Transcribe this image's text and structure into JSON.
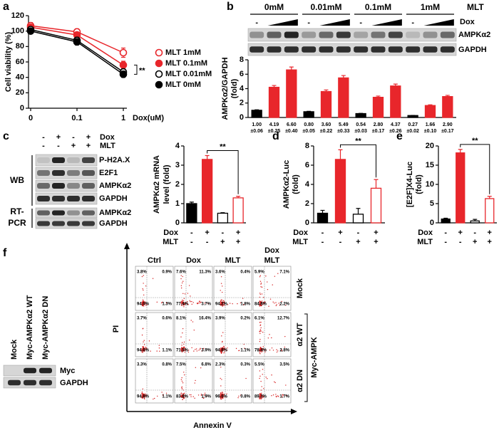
{
  "panel_labels": [
    "a",
    "b",
    "c",
    "d",
    "e",
    "f"
  ],
  "chart_data": [
    {
      "type": "line",
      "ylabel": [
        "Cell viability (%)"
      ],
      "xlabel": "Dox(uM)",
      "categories": [
        "0",
        "0.1",
        "1"
      ],
      "ylim": [
        0,
        120
      ],
      "yticks": [
        0,
        20,
        40,
        60,
        80,
        100,
        120
      ],
      "annotation": "**",
      "series": [
        {
          "name": "MLT 1mM",
          "color": "#e8262b",
          "filled": false,
          "values": [
            107,
            99,
            72
          ],
          "errors": [
            4,
            4,
            6
          ]
        },
        {
          "name": "MLT 0.1mM",
          "color": "#e8262b",
          "filled": true,
          "values": [
            105,
            95,
            56
          ],
          "errors": [
            3,
            3,
            5
          ]
        },
        {
          "name": "MLT 0.01mM",
          "color": "#000000",
          "filled": false,
          "values": [
            102,
            88,
            47
          ],
          "errors": [
            3,
            4,
            4
          ]
        },
        {
          "name": "MLT 0mM",
          "color": "#000000",
          "filled": true,
          "values": [
            100,
            86,
            44
          ],
          "errors": [
            3,
            4,
            4
          ]
        }
      ]
    },
    {
      "type": "bar",
      "ylabel": [
        "AMPKα2/GAPDH",
        "(fold)"
      ],
      "ylim": [
        0,
        8
      ],
      "yticks": [
        0,
        2,
        4,
        6,
        8
      ],
      "values": [
        1.0,
        4.19,
        6.6,
        0.8,
        3.6,
        5.49,
        0.54,
        2.8,
        4.37,
        0.27,
        1.66,
        2.9
      ],
      "errors": [
        0.06,
        0.25,
        0.4,
        0.05,
        0.22,
        0.33,
        0.03,
        0.17,
        0.26,
        0.02,
        0.1,
        0.17
      ],
      "value_labels": [
        "1.00",
        "4.19",
        "6.60",
        "0.80",
        "3.60",
        "5.49",
        "0.54",
        "2.80",
        "4.37",
        "0.27",
        "1.66",
        "2.90"
      ],
      "error_labels": [
        "±0.06",
        "±0.25",
        "±0.40",
        "±0.05",
        "±0.22",
        "±0.33",
        "±0.03",
        "±0.17",
        "±0.26",
        "±0.02",
        "±0.10",
        "±0.17"
      ],
      "colors": [
        "#000000",
        "#e8262b",
        "#e8262b",
        "#000000",
        "#e8262b",
        "#e8262b",
        "#000000",
        "#e8262b",
        "#e8262b",
        "#000000",
        "#e8262b",
        "#e8262b"
      ]
    },
    {
      "type": "bar",
      "ylabel": [
        "AMPKα2 mRNA",
        "level (fold)"
      ],
      "ylim": [
        0,
        4
      ],
      "yticks": [
        0,
        1,
        2,
        3,
        4
      ],
      "values": [
        1.0,
        3.3,
        0.5,
        1.3
      ],
      "errors": [
        0.08,
        0.2,
        0.03,
        0.08
      ],
      "colors": [
        "#000000",
        "#e8262b",
        "#000000",
        "#e8262b"
      ],
      "filled": [
        true,
        true,
        false,
        false
      ],
      "conditions": [
        {
          "name": "Dox",
          "signs": [
            "-",
            "+",
            "-",
            "+"
          ]
        },
        {
          "name": "MLT",
          "signs": [
            "-",
            "-",
            "+",
            "+"
          ]
        }
      ],
      "annotation": "**"
    },
    {
      "type": "bar",
      "ylabel": [
        "AMPKα2-Luc",
        "(fold)"
      ],
      "ylim": [
        0,
        8
      ],
      "yticks": [
        0,
        2,
        4,
        6,
        8
      ],
      "values": [
        1.0,
        6.6,
        0.9,
        3.6
      ],
      "errors": [
        0.3,
        1.0,
        0.6,
        0.9
      ],
      "colors": [
        "#000000",
        "#e8262b",
        "#000000",
        "#e8262b"
      ],
      "filled": [
        true,
        true,
        false,
        false
      ],
      "conditions": [
        {
          "name": "Dox",
          "signs": [
            "-",
            "+",
            "-",
            "+"
          ]
        },
        {
          "name": "MLT",
          "signs": [
            "-",
            "-",
            "+",
            "+"
          ]
        }
      ],
      "annotation": "**"
    },
    {
      "type": "bar",
      "ylabel": [
        "[E2F]X4-Luc",
        "(fold)"
      ],
      "ylim": [
        0,
        20
      ],
      "yticks": [
        0,
        5,
        10,
        15,
        20
      ],
      "values": [
        1.0,
        18.2,
        0.5,
        6.3
      ],
      "errors": [
        0.2,
        0.9,
        0.4,
        0.6
      ],
      "colors": [
        "#000000",
        "#e8262b",
        "#000000",
        "#e8262b"
      ],
      "filled": [
        true,
        true,
        false,
        false
      ],
      "conditions": [
        {
          "name": "Dox",
          "signs": [
            "-",
            "+",
            "-",
            "+"
          ]
        },
        {
          "name": "MLT",
          "signs": [
            "-",
            "-",
            "+",
            "+"
          ]
        }
      ],
      "annotation": "**"
    }
  ],
  "blot_b": {
    "groups": [
      "0mM",
      "0.01mM",
      "0.1mM",
      "1mM"
    ],
    "group_title": "MLT",
    "dox_label": "Dox",
    "dox_signs": [
      "-",
      "-",
      "-",
      "-"
    ],
    "rows": [
      "AMPKα2",
      "GAPDH"
    ]
  },
  "blot_c": {
    "conditions": [
      {
        "name": "Dox",
        "signs": [
          "-",
          "+",
          "-",
          "+"
        ]
      },
      {
        "name": "MLT",
        "signs": [
          "-",
          "-",
          "+",
          "+"
        ]
      }
    ],
    "wb_label": "WB",
    "wb_rows": [
      "P-H2A.X",
      "E2F1",
      "AMPKα2",
      "GAPDH"
    ],
    "rt_label": [
      "RT-",
      "PCR"
    ],
    "rt_rows": [
      "AMPKα2",
      "GAPDH"
    ]
  },
  "blot_f": {
    "lanes": [
      "Mock",
      "Myc-AMPKα2 WT",
      "Myc-AMPKα2 DN"
    ],
    "rows": [
      "Myc",
      "GAPDH"
    ]
  },
  "flow": {
    "columns": [
      [
        "Ctrl"
      ],
      [
        "Dox"
      ],
      [
        "MLT"
      ],
      [
        "Dox",
        "MLT"
      ]
    ],
    "rows": [
      "Mock",
      "α2 WT",
      "α2 DN"
    ],
    "group": "Myc-AMPK",
    "x_label": "Annexin V",
    "y_label": "PI",
    "quadrants": [
      [
        [
          "3.8%",
          "0.9%",
          "94.0%",
          "1.3%"
        ],
        [
          "7.6%",
          "11.3%",
          "77.4%",
          "3.7%"
        ],
        [
          "3.6%",
          "0.4%",
          "94.2%",
          "1.8%"
        ],
        [
          "5.9%",
          "7.1%",
          "84.8%",
          "2.2%"
        ]
      ],
      [
        [
          "3.7%",
          "0.6%",
          "94.6%",
          "1.1%"
        ],
        [
          "8.1%",
          "16.4%",
          "71.5%",
          "3.9%"
        ],
        [
          "3.9%",
          "0.2%",
          "94.8%",
          "1.1%"
        ],
        [
          "6.1%",
          "12.7%",
          "78.4%",
          "2.8%"
        ]
      ],
      [
        [
          "3.3%",
          "0.8%",
          "94.8%",
          "1.1%"
        ],
        [
          "7.5%",
          "6.8%",
          "83.8%",
          "1.9%"
        ],
        [
          "2.3%",
          "0.3%",
          "96.6%",
          "0.8%"
        ],
        [
          "5.5%",
          "3.5%",
          "89.3%",
          "1.7%"
        ]
      ]
    ]
  }
}
